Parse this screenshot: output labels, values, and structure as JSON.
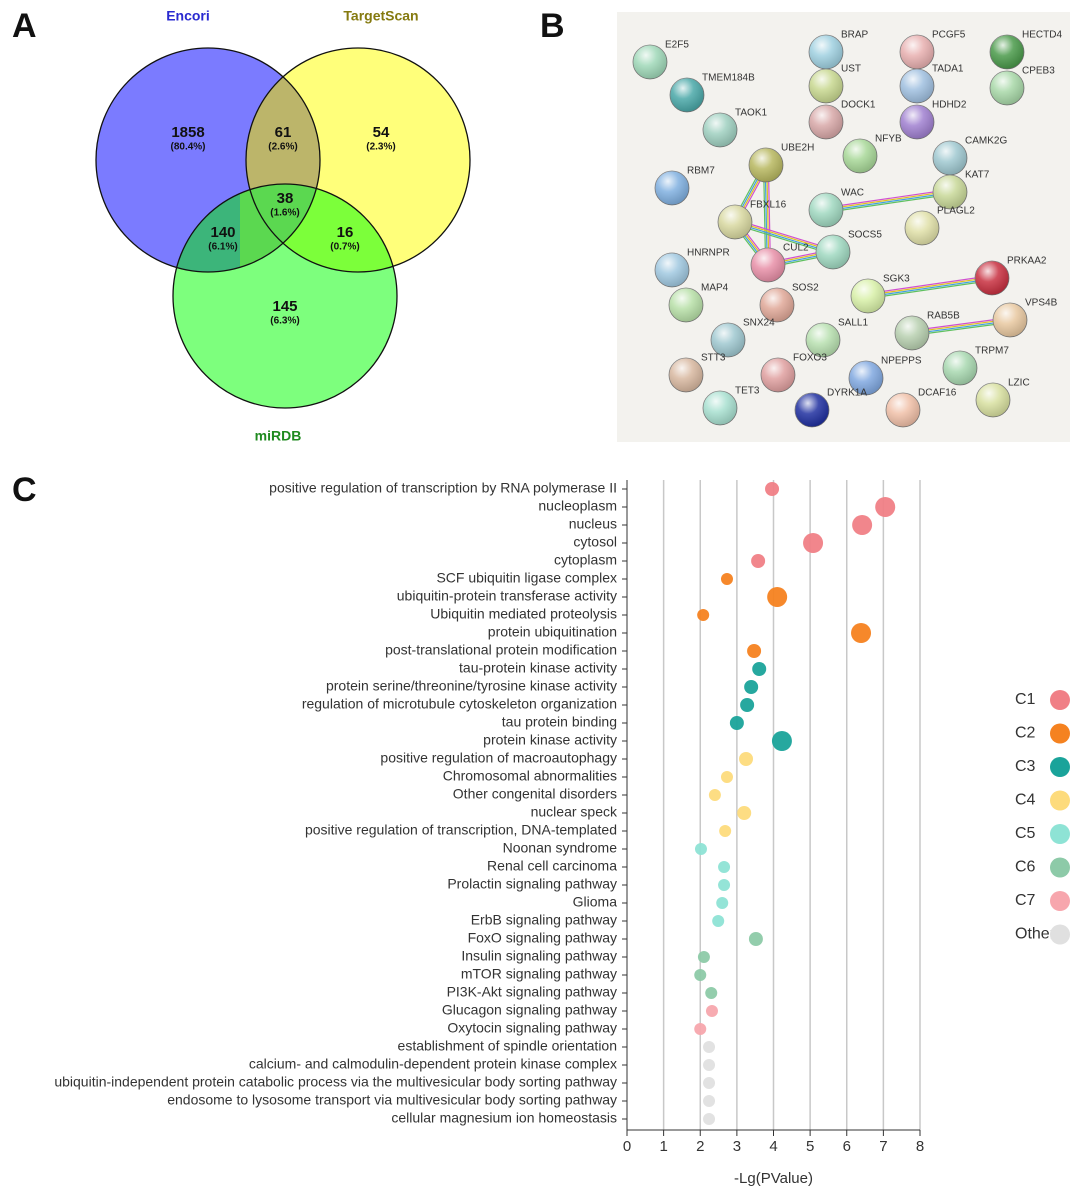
{
  "panel_labels": [
    "A",
    "B",
    "C"
  ],
  "chart_data": [
    {
      "type": "venn",
      "sets": [
        {
          "name": "Encori",
          "color": "#7b7bff",
          "label_color": "#2a2ad0"
        },
        {
          "name": "TargetScan",
          "color": "#ffff7a",
          "label_color": "#857a10"
        },
        {
          "name": "miRDB",
          "color": "#7dff7d",
          "label_color": "#1f8a1f"
        }
      ],
      "regions": [
        "Encori",
        "Encori & TargetScan",
        "TargetScan",
        "Encori & TargetScan & miRDB",
        "Encori & miRDB",
        "TargetScan & miRDB",
        "miRDB"
      ],
      "values": [
        1858,
        61,
        54,
        38,
        140,
        16,
        145
      ],
      "percents": [
        80.4,
        2.6,
        2.3,
        1.6,
        6.1,
        0.7,
        6.3
      ],
      "percent_labels": [
        "(80.4%)",
        "(2.6%)",
        "(2.3%)",
        "(1.6%)",
        "(6.1%)",
        "(0.7%)",
        "(6.3%)"
      ]
    },
    {
      "type": "network",
      "nodes": [
        {
          "label": "E2F5",
          "color": "#9fd8b8"
        },
        {
          "label": "TMEM184B",
          "color": "#4aa8a8"
        },
        {
          "label": "BRAP",
          "color": "#9fd0e0"
        },
        {
          "label": "PCGF5",
          "color": "#e8b0b0"
        },
        {
          "label": "HECTD4",
          "color": "#4a9a4a"
        },
        {
          "label": "UST",
          "color": "#c8d890"
        },
        {
          "label": "TADA1",
          "color": "#a0c0e0"
        },
        {
          "label": "CPEB3",
          "color": "#a8d8a8"
        },
        {
          "label": "TAOK1",
          "color": "#9fd0c0"
        },
        {
          "label": "DOCK1",
          "color": "#d8a8a8"
        },
        {
          "label": "HDHD2",
          "color": "#a080d0"
        },
        {
          "label": "NFYB",
          "color": "#a8d898"
        },
        {
          "label": "CAMK2G",
          "color": "#9fc8d0"
        },
        {
          "label": "UBE2H",
          "color": "#b8b860"
        },
        {
          "label": "RBM7",
          "color": "#80b0e0"
        },
        {
          "label": "KAT7",
          "color": "#c8d898"
        },
        {
          "label": "WAC",
          "color": "#a0d8c0"
        },
        {
          "label": "FBXL16",
          "color": "#d8d8a0"
        },
        {
          "label": "PLAGL2",
          "color": "#e0e0a8"
        },
        {
          "label": "CUL2",
          "color": "#e890a8"
        },
        {
          "label": "SOCS5",
          "color": "#9fd8c0"
        },
        {
          "label": "HNRNPR",
          "color": "#a0c8e0"
        },
        {
          "label": "PRKAA2",
          "color": "#c83040"
        },
        {
          "label": "MAP4",
          "color": "#b8e0a8"
        },
        {
          "label": "SOS2",
          "color": "#e0a898"
        },
        {
          "label": "SGK3",
          "color": "#d8f0a8"
        },
        {
          "label": "VPS4B",
          "color": "#e8c8a0"
        },
        {
          "label": "SNX24",
          "color": "#9fc8d0"
        },
        {
          "label": "SALL1",
          "color": "#b8e0b0"
        },
        {
          "label": "RAB5B",
          "color": "#b8d0b0"
        },
        {
          "label": "STT3",
          "color": "#d8b8a0"
        },
        {
          "label": "FOXO3",
          "color": "#e0a0a0"
        },
        {
          "label": "NPEPPS",
          "color": "#80a8e0"
        },
        {
          "label": "TRPM7",
          "color": "#a8d8b0"
        },
        {
          "label": "TET3",
          "color": "#a8e0d0"
        },
        {
          "label": "DYRK1A",
          "color": "#2030a0"
        },
        {
          "label": "DCAF16",
          "color": "#f0c0a8"
        },
        {
          "label": "LZIC",
          "color": "#d8e0a0"
        }
      ],
      "edges": [
        [
          "UBE2H",
          "CUL2"
        ],
        [
          "UBE2H",
          "FBXL16"
        ],
        [
          "FBXL16",
          "CUL2"
        ],
        [
          "FBXL16",
          "SOCS5"
        ],
        [
          "CUL2",
          "SOCS5"
        ],
        [
          "WAC",
          "KAT7"
        ],
        [
          "SGK3",
          "PRKAA2"
        ],
        [
          "RAB5B",
          "VPS4B"
        ]
      ]
    },
    {
      "type": "scatter",
      "x_label": "-Lg(PValue)",
      "xlim": [
        0,
        8
      ],
      "xticks": [
        0,
        1,
        2,
        3,
        4,
        5,
        6,
        7,
        8
      ],
      "grid": true,
      "series": [
        {
          "name": "C1",
          "color": "#f07f86",
          "categories": [
            "positive regulation of transcription by RNA polymerase II",
            "nucleoplasm",
            "nucleus",
            "cytosol",
            "cytoplasm"
          ],
          "values": [
            3.96,
            7.05,
            6.42,
            5.08,
            3.58
          ],
          "sizes": [
            7,
            10,
            10,
            10,
            7
          ]
        },
        {
          "name": "C2",
          "color": "#f58220",
          "categories": [
            "SCF ubiquitin ligase complex",
            "ubiquitin-protein transferase activity",
            "Ubiquitin mediated proteolysis",
            "protein ubiquitination",
            "post-translational protein modification"
          ],
          "values": [
            2.73,
            4.1,
            2.08,
            6.39,
            3.47
          ],
          "sizes": [
            6,
            10,
            6,
            10,
            7
          ]
        },
        {
          "name": "C3",
          "color": "#1aa39a",
          "categories": [
            "tau-protein kinase activity",
            "protein serine/threonine/tyrosine kinase activity",
            "regulation of microtubule cytoskeleton organization",
            "tau protein binding",
            "protein kinase activity"
          ],
          "values": [
            3.61,
            3.39,
            3.28,
            3.0,
            4.23
          ],
          "sizes": [
            7,
            7,
            7,
            7,
            10
          ]
        },
        {
          "name": "C4",
          "color": "#fddb7c",
          "categories": [
            "positive regulation of macroautophagy",
            "Chromosomal abnormalities",
            "Other congenital disorders",
            "nuclear speck",
            "positive regulation of transcription, DNA-templated"
          ],
          "values": [
            3.25,
            2.73,
            2.4,
            3.2,
            2.68
          ],
          "sizes": [
            7,
            6,
            6,
            7,
            6
          ]
        },
        {
          "name": "C5",
          "color": "#8ee3d5",
          "categories": [
            "Noonan syndrome",
            "Renal cell carcinoma",
            "Prolactin signaling pathway",
            "Glioma",
            "ErbB signaling pathway"
          ],
          "values": [
            2.02,
            2.65,
            2.65,
            2.6,
            2.49
          ],
          "sizes": [
            6,
            6,
            6,
            6,
            6
          ]
        },
        {
          "name": "C6",
          "color": "#8dcaa8",
          "categories": [
            "FoxO signaling pathway",
            "Insulin signaling pathway",
            "mTOR signaling pathway",
            "PI3K-Akt signaling pathway"
          ],
          "values": [
            3.52,
            2.1,
            2.0,
            2.3
          ],
          "sizes": [
            7,
            6,
            6,
            6
          ]
        },
        {
          "name": "C7",
          "color": "#f7a6ad",
          "categories": [
            "Glucagon signaling pathway",
            "Oxytocin signaling pathway"
          ],
          "values": [
            2.32,
            2.0
          ],
          "sizes": [
            6,
            6
          ]
        },
        {
          "name": "Other",
          "color": "#e0e0e0",
          "categories": [
            "establishment of spindle orientation",
            "calcium- and calmodulin-dependent protein kinase complex",
            "ubiquitin-independent protein catabolic process via the multivesicular body sorting pathway",
            "endosome to lysosome transport via multivesicular body sorting pathway",
            "cellular magnesium ion homeostasis"
          ],
          "values": [
            2.24,
            2.24,
            2.24,
            2.24,
            2.24
          ],
          "sizes": [
            6,
            6,
            6,
            6,
            6
          ]
        }
      ]
    }
  ]
}
